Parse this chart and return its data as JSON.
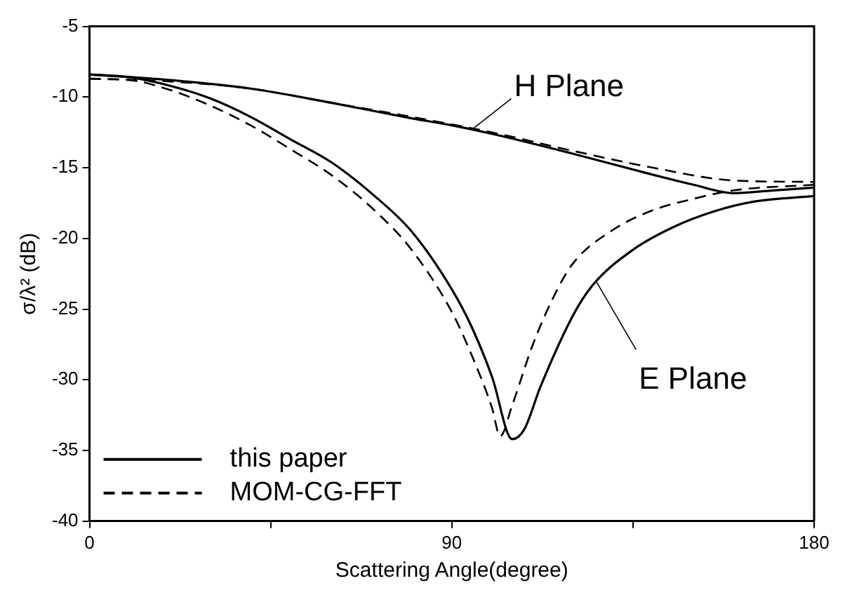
{
  "chart_data": {
    "type": "line",
    "xlabel": "Scattering Angle(degree)",
    "ylabel": "σ/λ² (dB)",
    "xlim": [
      0,
      180
    ],
    "xticks": [
      0,
      {
        "value": 45,
        "label": null
      },
      90,
      {
        "value": 135,
        "label": null
      },
      180
    ],
    "ylim": [
      -40,
      -5
    ],
    "yticks": [
      -40,
      -35,
      -30,
      -25,
      -20,
      -15,
      -10,
      -5
    ],
    "grid": false,
    "legend": "bottom left",
    "marker": "none",
    "series": [
      {
        "name": "this paper",
        "color": "#000000",
        "line_style": "solid",
        "x": [
          0,
          20,
          40,
          60,
          80,
          90,
          100,
          120,
          140,
          150,
          160,
          170,
          180
        ],
        "values": [
          -8.4,
          -8.8,
          -9.4,
          -10.4,
          -11.5,
          -12.0,
          -12.6,
          -14.0,
          -15.5,
          -16.2,
          -16.8,
          -16.6,
          -16.4
        ]
      },
      {
        "name": "MOM-CG-FFT",
        "color": "#000000",
        "line_style": "dashed",
        "x": [
          0,
          20,
          40,
          60,
          80,
          100,
          120,
          140,
          160,
          180
        ],
        "values": [
          -8.7,
          -8.9,
          -9.4,
          -10.4,
          -11.4,
          -12.5,
          -13.8,
          -15.0,
          -15.9,
          -16.0
        ]
      },
      {
        "color": "#000000",
        "line_style": "solid",
        "x": [
          0,
          10,
          20,
          30,
          40,
          50,
          60,
          70,
          80,
          90,
          95,
          100,
          105,
          108,
          112,
          120,
          125,
          135,
          145,
          155,
          165,
          180
        ],
        "values": [
          -8.4,
          -8.6,
          -9.2,
          -10.1,
          -11.4,
          -13.0,
          -14.6,
          -16.8,
          -19.5,
          -23.6,
          -26.3,
          -29.8,
          -34.2,
          -33.5,
          -30.5,
          -25.5,
          -23.3,
          -20.8,
          -19.2,
          -18.1,
          -17.4,
          -17.0
        ]
      },
      {
        "color": "#000000",
        "line_style": "dashed",
        "x": [
          0,
          10,
          20,
          30,
          40,
          50,
          60,
          70,
          80,
          90,
          95,
          100,
          102,
          105,
          110,
          115,
          120,
          130,
          140,
          150,
          160,
          180
        ],
        "values": [
          -8.7,
          -8.8,
          -9.5,
          -10.6,
          -12.0,
          -13.7,
          -15.5,
          -17.8,
          -20.8,
          -25.2,
          -28.3,
          -32.0,
          -34.0,
          -31.8,
          -27.6,
          -24.3,
          -21.8,
          -19.4,
          -18.0,
          -17.2,
          -16.6,
          -16.2
        ]
      }
    ],
    "annotations": [
      {
        "text": "H Plane",
        "x": 95,
        "y": -12.3
      },
      {
        "text": "E Plane",
        "x": 126,
        "y": -23.1
      }
    ]
  }
}
